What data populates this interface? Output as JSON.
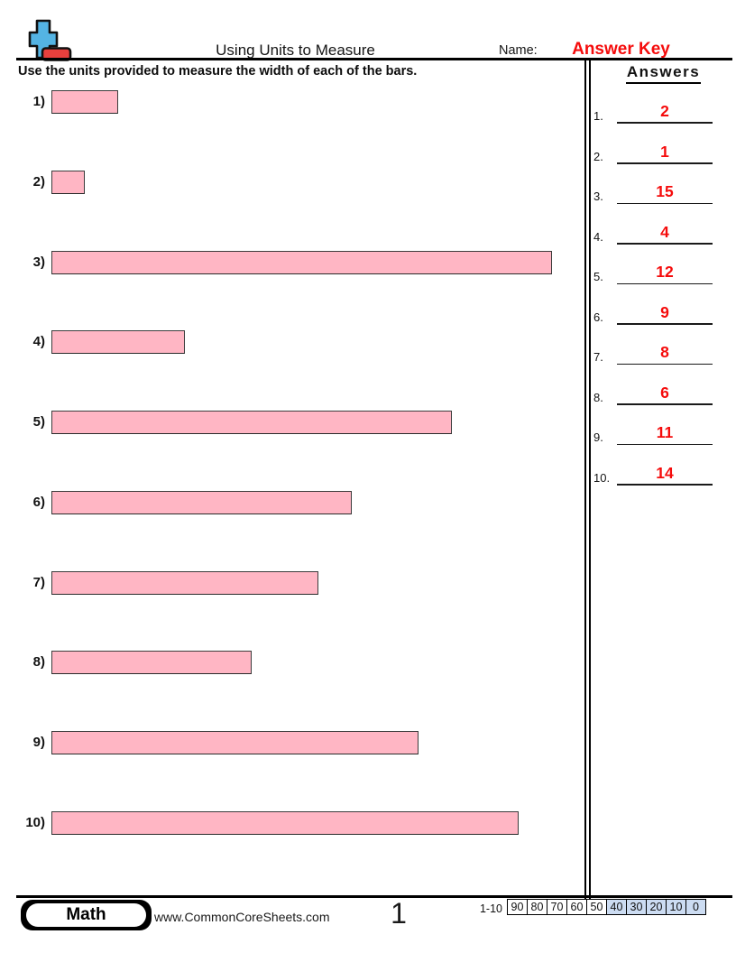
{
  "header": {
    "title": "Using Units to Measure",
    "name_label": "Name:",
    "name_value": "Answer Key",
    "instruction": "Use the units provided to measure the width of each of the bars."
  },
  "problems": [
    {
      "label": "1)",
      "units": 2
    },
    {
      "label": "2)",
      "units": 1
    },
    {
      "label": "3)",
      "units": 15
    },
    {
      "label": "4)",
      "units": 4
    },
    {
      "label": "5)",
      "units": 12
    },
    {
      "label": "6)",
      "units": 9
    },
    {
      "label": "7)",
      "units": 8
    },
    {
      "label": "8)",
      "units": 6
    },
    {
      "label": "9)",
      "units": 11
    },
    {
      "label": "10)",
      "units": 14
    }
  ],
  "answers_panel": {
    "title": "Answers",
    "rows": [
      {
        "num": "1.",
        "value": "2"
      },
      {
        "num": "2.",
        "value": "1"
      },
      {
        "num": "3.",
        "value": "15"
      },
      {
        "num": "4.",
        "value": "4"
      },
      {
        "num": "5.",
        "value": "12"
      },
      {
        "num": "6.",
        "value": "9"
      },
      {
        "num": "7.",
        "value": "8"
      },
      {
        "num": "8.",
        "value": "6"
      },
      {
        "num": "9.",
        "value": "11"
      },
      {
        "num": "10.",
        "value": "14"
      }
    ]
  },
  "footer": {
    "subject": "Math",
    "website": "www.CommonCoreSheets.com",
    "page_number": "1",
    "score_label": "1-10",
    "score_cells": [
      {
        "label": "90",
        "highlighted": false
      },
      {
        "label": "80",
        "highlighted": false
      },
      {
        "label": "70",
        "highlighted": false
      },
      {
        "label": "60",
        "highlighted": false
      },
      {
        "label": "50",
        "highlighted": false
      },
      {
        "label": "40",
        "highlighted": true
      },
      {
        "label": "30",
        "highlighted": true
      },
      {
        "label": "20",
        "highlighted": true
      },
      {
        "label": "10",
        "highlighted": true
      },
      {
        "label": "0",
        "highlighted": true
      }
    ]
  },
  "colors": {
    "bar_fill": "#ffb6c4",
    "bar_border": "#3c3c3c",
    "answer_red": "#f50c0c",
    "score_highlight": "#ccdcf2",
    "logo_blue": "#54b4e4",
    "logo_red": "#e8403d"
  }
}
